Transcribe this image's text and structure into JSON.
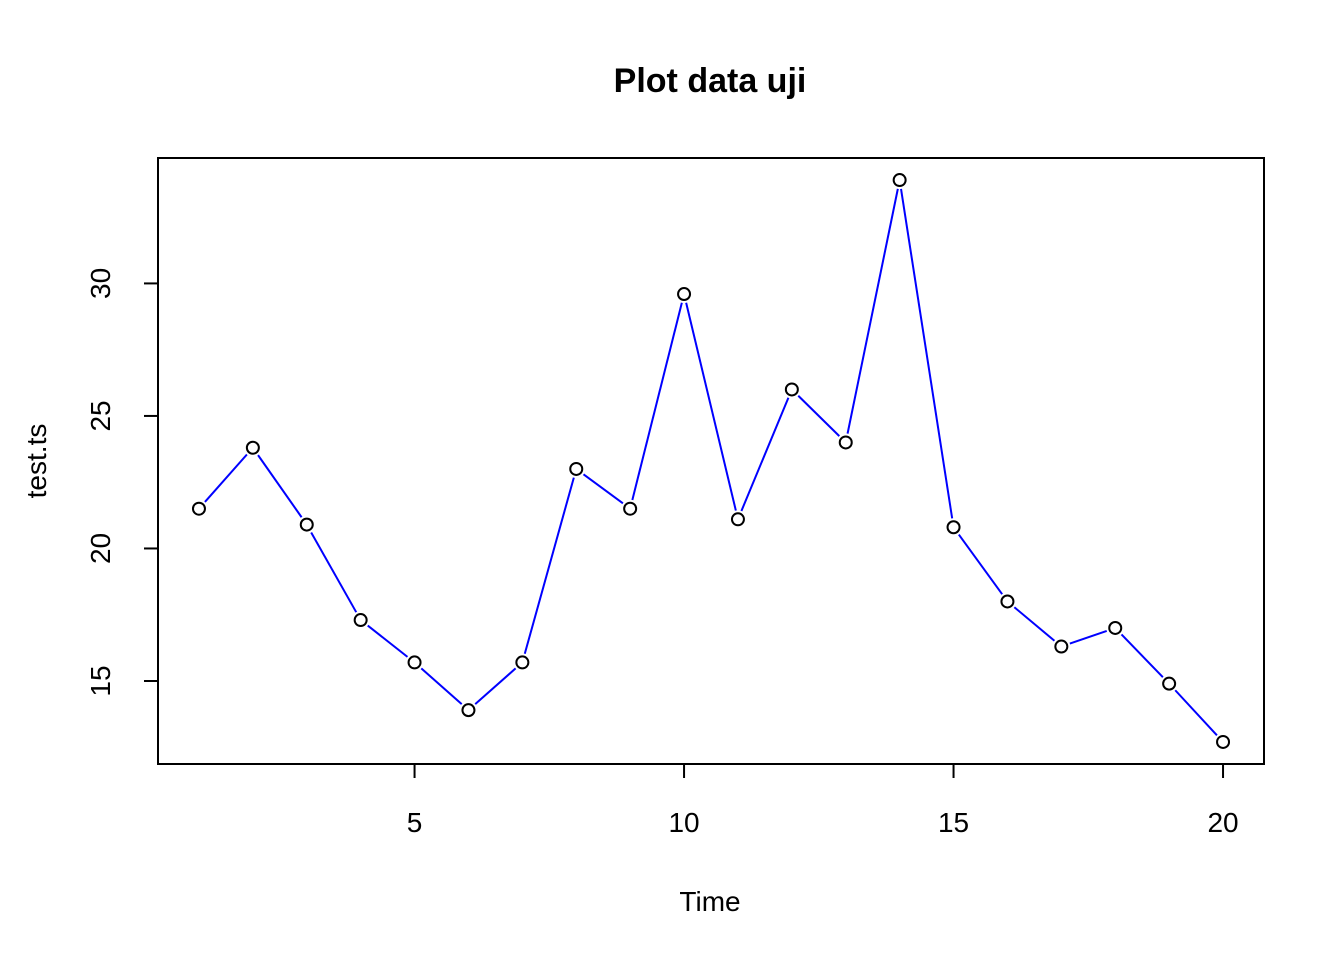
{
  "chart_data": {
    "type": "line",
    "title": "Plot data uji",
    "xlabel": "Time",
    "ylabel": "test.ts",
    "x": [
      1,
      2,
      3,
      4,
      5,
      6,
      7,
      8,
      9,
      10,
      11,
      12,
      13,
      14,
      15,
      16,
      17,
      18,
      19,
      20
    ],
    "series": [
      {
        "values": [
          21.5,
          23.8,
          20.9,
          17.3,
          15.7,
          13.9,
          15.7,
          23.0,
          21.5,
          29.6,
          21.1,
          26.0,
          24.0,
          33.9,
          20.8,
          18.0,
          16.3,
          17.0,
          14.9,
          12.7
        ],
        "line_color": "#0000ff",
        "marker": "open-circle",
        "marker_color": "#000000"
      }
    ],
    "xlim": [
      0.24,
      20.76
    ],
    "ylim": [
      11.868,
      34.732
    ],
    "xticks": [
      5,
      10,
      15,
      20
    ],
    "yticks": [
      15,
      20,
      25,
      30
    ],
    "grid": false,
    "legend": "none"
  }
}
